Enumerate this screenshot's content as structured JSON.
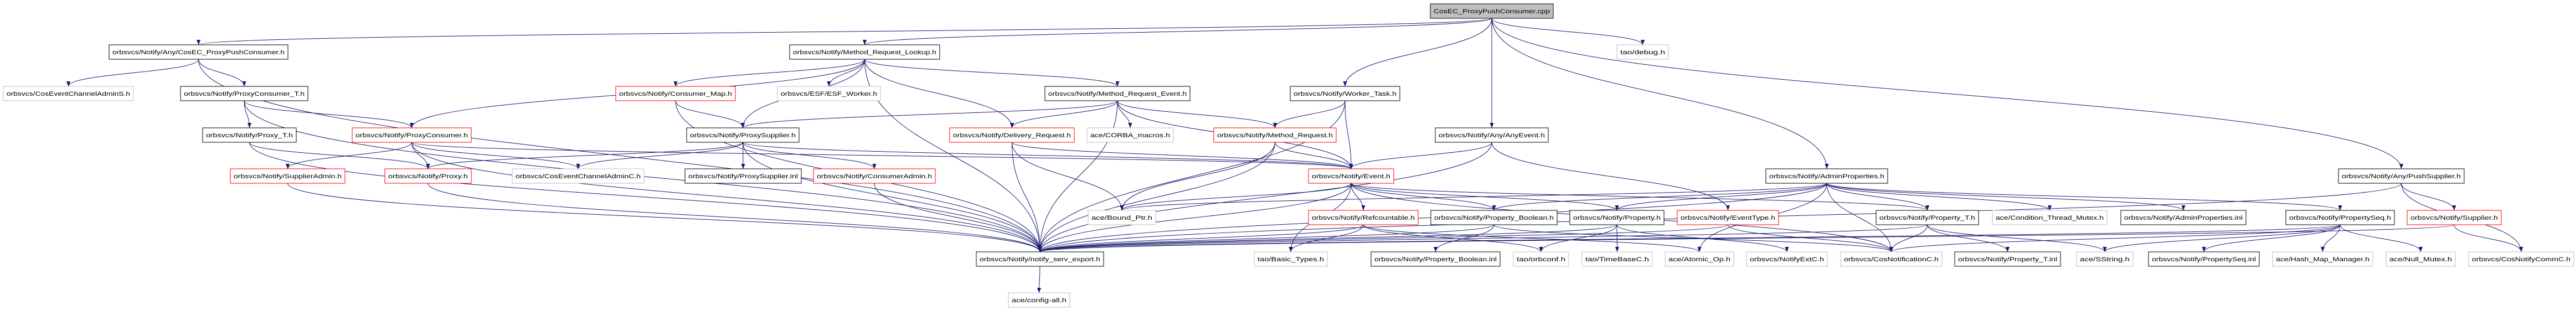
{
  "colors": {
    "edge": "#191970",
    "border_documented": "#000000",
    "border_truncated": "#ff0000",
    "border_undocumented": "#bfbfbf",
    "root_fill": "#bfbfbf"
  },
  "nodes": [
    {
      "label": "CosEC_ProxyPushConsumer.cpp",
      "kind": "root"
    },
    {
      "label": "orbsvcs/Notify/Any/CosEC_ProxyPushConsumer.h",
      "kind": "documented"
    },
    {
      "label": "orbsvcs/Notify/Method_Request_Lookup.h",
      "kind": "documented"
    },
    {
      "label": "tao/debug.h",
      "kind": "undocumented"
    },
    {
      "label": "orbsvcs/CosEventChannelAdminS.h",
      "kind": "undocumented"
    },
    {
      "label": "orbsvcs/Notify/ProxyConsumer_T.h",
      "kind": "documented"
    },
    {
      "label": "orbsvcs/Notify/Consumer_Map.h",
      "kind": "truncated"
    },
    {
      "label": "orbsvcs/ESF/ESF_Worker.h",
      "kind": "undocumented"
    },
    {
      "label": "orbsvcs/Notify/Method_Request_Event.h",
      "kind": "documented"
    },
    {
      "label": "orbsvcs/Notify/Worker_Task.h",
      "kind": "documented"
    },
    {
      "label": "orbsvcs/Notify/Proxy_T.h",
      "kind": "documented"
    },
    {
      "label": "orbsvcs/Notify/ProxyConsumer.h",
      "kind": "truncated"
    },
    {
      "label": "orbsvcs/Notify/ProxySupplier.h",
      "kind": "documented"
    },
    {
      "label": "orbsvcs/Notify/Delivery_Request.h",
      "kind": "truncated"
    },
    {
      "label": "ace/CORBA_macros.h",
      "kind": "undocumented"
    },
    {
      "label": "orbsvcs/Notify/Method_Request.h",
      "kind": "truncated"
    },
    {
      "label": "orbsvcs/Notify/Any/AnyEvent.h",
      "kind": "documented"
    },
    {
      "label": "orbsvcs/Notify/SupplierAdmin.h",
      "kind": "truncated"
    },
    {
      "label": "orbsvcs/Notify/Proxy.h",
      "kind": "truncated"
    },
    {
      "label": "orbsvcs/CosEventChannelAdminC.h",
      "kind": "undocumented"
    },
    {
      "label": "orbsvcs/Notify/ProxySupplier.inl",
      "kind": "documented"
    },
    {
      "label": "orbsvcs/Notify/ConsumerAdmin.h",
      "kind": "truncated"
    },
    {
      "label": "orbsvcs/Notify/Event.h",
      "kind": "truncated"
    },
    {
      "label": "orbsvcs/Notify/AdminProperties.h",
      "kind": "documented"
    },
    {
      "label": "orbsvcs/Notify/Any/PushSupplier.h",
      "kind": "documented"
    },
    {
      "label": "ace/Bound_Ptr.h",
      "kind": "undocumented"
    },
    {
      "label": "orbsvcs/Notify/Refcountable.h",
      "kind": "truncated"
    },
    {
      "label": "orbsvcs/Notify/Property_Boolean.h",
      "kind": "documented"
    },
    {
      "label": "orbsvcs/Notify/Property.h",
      "kind": "documented"
    },
    {
      "label": "orbsvcs/Notify/EventType.h",
      "kind": "truncated"
    },
    {
      "label": "orbsvcs/Notify/Property_T.h",
      "kind": "documented"
    },
    {
      "label": "ace/Condition_Thread_Mutex.h",
      "kind": "undocumented"
    },
    {
      "label": "orbsvcs/Notify/AdminProperties.inl",
      "kind": "documented"
    },
    {
      "label": "orbsvcs/Notify/PropertySeq.h",
      "kind": "documented"
    },
    {
      "label": "orbsvcs/Notify/Supplier.h",
      "kind": "truncated"
    },
    {
      "label": "orbsvcs/Notify/notify_serv_export.h",
      "kind": "documented"
    },
    {
      "label": "tao/Basic_Types.h",
      "kind": "undocumented"
    },
    {
      "label": "orbsvcs/Notify/Property_Boolean.inl",
      "kind": "documented"
    },
    {
      "label": "tao/orbconf.h",
      "kind": "undocumented"
    },
    {
      "label": "tao/TimeBaseC.h",
      "kind": "undocumented"
    },
    {
      "label": "ace/Atomic_Op.h",
      "kind": "undocumented"
    },
    {
      "label": "orbsvcs/NotifyExtC.h",
      "kind": "undocumented"
    },
    {
      "label": "orbsvcs/CosNotificationC.h",
      "kind": "undocumented"
    },
    {
      "label": "orbsvcs/Notify/Property_T.inl",
      "kind": "documented"
    },
    {
      "label": "ace/SString.h",
      "kind": "undocumented"
    },
    {
      "label": "orbsvcs/Notify/PropertySeq.inl",
      "kind": "documented"
    },
    {
      "label": "ace/Hash_Map_Manager.h",
      "kind": "undocumented"
    },
    {
      "label": "ace/Null_Mutex.h",
      "kind": "undocumented"
    },
    {
      "label": "orbsvcs/CosNotifyCommC.h",
      "kind": "undocumented"
    },
    {
      "label": "ace/config-all.h",
      "kind": "undocumented"
    }
  ],
  "edges": [
    [
      "CosEC_ProxyPushConsumer.cpp",
      "orbsvcs/Notify/Any/CosEC_ProxyPushConsumer.h"
    ],
    [
      "CosEC_ProxyPushConsumer.cpp",
      "orbsvcs/Notify/Method_Request_Lookup.h"
    ],
    [
      "CosEC_ProxyPushConsumer.cpp",
      "orbsvcs/Notify/Worker_Task.h"
    ],
    [
      "CosEC_ProxyPushConsumer.cpp",
      "orbsvcs/Notify/Any/AnyEvent.h"
    ],
    [
      "CosEC_ProxyPushConsumer.cpp",
      "tao/debug.h"
    ],
    [
      "CosEC_ProxyPushConsumer.cpp",
      "orbsvcs/Notify/AdminProperties.h"
    ],
    [
      "CosEC_ProxyPushConsumer.cpp",
      "orbsvcs/Notify/Any/PushSupplier.h"
    ],
    [
      "orbsvcs/Notify/Any/CosEC_ProxyPushConsumer.h",
      "orbsvcs/CosEventChannelAdminS.h"
    ],
    [
      "orbsvcs/Notify/Any/CosEC_ProxyPushConsumer.h",
      "orbsvcs/Notify/ProxyConsumer_T.h"
    ],
    [
      "orbsvcs/Notify/Any/CosEC_ProxyPushConsumer.h",
      "orbsvcs/Notify/notify_serv_export.h"
    ],
    [
      "orbsvcs/Notify/ProxyConsumer_T.h",
      "orbsvcs/Notify/Proxy_T.h"
    ],
    [
      "orbsvcs/Notify/ProxyConsumer_T.h",
      "orbsvcs/Notify/ProxyConsumer.h"
    ],
    [
      "orbsvcs/Notify/ProxyConsumer_T.h",
      "orbsvcs/Notify/notify_serv_export.h"
    ],
    [
      "orbsvcs/Notify/Proxy_T.h",
      "orbsvcs/Notify/Proxy.h"
    ],
    [
      "orbsvcs/Notify/Proxy_T.h",
      "orbsvcs/Notify/notify_serv_export.h"
    ],
    [
      "orbsvcs/Notify/ProxyConsumer.h",
      "orbsvcs/Notify/SupplierAdmin.h"
    ],
    [
      "orbsvcs/Notify/ProxyConsumer.h",
      "orbsvcs/Notify/Proxy.h"
    ],
    [
      "orbsvcs/Notify/ProxyConsumer.h",
      "orbsvcs/CosEventChannelAdminC.h"
    ],
    [
      "orbsvcs/Notify/ProxyConsumer.h",
      "orbsvcs/Notify/Event.h"
    ],
    [
      "orbsvcs/Notify/ProxyConsumer.h",
      "orbsvcs/Notify/notify_serv_export.h"
    ],
    [
      "orbsvcs/Notify/SupplierAdmin.h",
      "orbsvcs/Notify/notify_serv_export.h"
    ],
    [
      "orbsvcs/Notify/Proxy.h",
      "orbsvcs/Notify/notify_serv_export.h"
    ],
    [
      "orbsvcs/Notify/Method_Request_Lookup.h",
      "orbsvcs/Notify/ProxyConsumer.h"
    ],
    [
      "orbsvcs/Notify/Method_Request_Lookup.h",
      "orbsvcs/Notify/Consumer_Map.h"
    ],
    [
      "orbsvcs/Notify/Method_Request_Lookup.h",
      "orbsvcs/ESF/ESF_Worker.h"
    ],
    [
      "orbsvcs/Notify/Method_Request_Lookup.h",
      "orbsvcs/Notify/ProxySupplier.h"
    ],
    [
      "orbsvcs/Notify/Method_Request_Lookup.h",
      "orbsvcs/Notify/Method_Request_Event.h"
    ],
    [
      "orbsvcs/Notify/Method_Request_Lookup.h",
      "orbsvcs/Notify/Delivery_Request.h"
    ],
    [
      "orbsvcs/Notify/Method_Request_Lookup.h",
      "orbsvcs/Notify/notify_serv_export.h"
    ],
    [
      "orbsvcs/Notify/Consumer_Map.h",
      "orbsvcs/Notify/ProxySupplier.h"
    ],
    [
      "orbsvcs/Notify/Consumer_Map.h",
      "orbsvcs/Notify/notify_serv_export.h"
    ],
    [
      "orbsvcs/Notify/Method_Request_Event.h",
      "orbsvcs/Notify/ProxySupplier.h"
    ],
    [
      "orbsvcs/Notify/Method_Request_Event.h",
      "orbsvcs/Notify/Delivery_Request.h"
    ],
    [
      "orbsvcs/Notify/Method_Request_Event.h",
      "ace/CORBA_macros.h"
    ],
    [
      "orbsvcs/Notify/Method_Request_Event.h",
      "orbsvcs/Notify/Method_Request.h"
    ],
    [
      "orbsvcs/Notify/Method_Request_Event.h",
      "orbsvcs/Notify/Event.h"
    ],
    [
      "orbsvcs/Notify/Method_Request_Event.h",
      "orbsvcs/Notify/notify_serv_export.h"
    ],
    [
      "orbsvcs/Notify/ProxySupplier.h",
      "orbsvcs/Notify/Proxy.h"
    ],
    [
      "orbsvcs/Notify/ProxySupplier.h",
      "orbsvcs/CosEventChannelAdminC.h"
    ],
    [
      "orbsvcs/Notify/ProxySupplier.h",
      "orbsvcs/Notify/ProxySupplier.inl"
    ],
    [
      "orbsvcs/Notify/ProxySupplier.h",
      "orbsvcs/Notify/ConsumerAdmin.h"
    ],
    [
      "orbsvcs/Notify/ProxySupplier.h",
      "orbsvcs/Notify/Event.h"
    ],
    [
      "orbsvcs/Notify/ProxySupplier.h",
      "orbsvcs/Notify/notify_serv_export.h"
    ],
    [
      "orbsvcs/Notify/ConsumerAdmin.h",
      "orbsvcs/Notify/notify_serv_export.h"
    ],
    [
      "orbsvcs/Notify/Delivery_Request.h",
      "ace/Bound_Ptr.h"
    ],
    [
      "orbsvcs/Notify/Delivery_Request.h",
      "orbsvcs/Notify/Event.h"
    ],
    [
      "orbsvcs/Notify/Delivery_Request.h",
      "orbsvcs/Notify/notify_serv_export.h"
    ],
    [
      "orbsvcs/Notify/Method_Request.h",
      "orbsvcs/Notify/Event.h"
    ],
    [
      "orbsvcs/Notify/Method_Request.h",
      "ace/Bound_Ptr.h"
    ],
    [
      "orbsvcs/Notify/Method_Request.h",
      "orbsvcs/Notify/notify_serv_export.h"
    ],
    [
      "orbsvcs/Notify/Worker_Task.h",
      "orbsvcs/Notify/Method_Request.h"
    ],
    [
      "orbsvcs/Notify/Worker_Task.h",
      "orbsvcs/Notify/Event.h"
    ],
    [
      "orbsvcs/Notify/Worker_Task.h",
      "orbsvcs/Notify/notify_serv_export.h"
    ],
    [
      "orbsvcs/Notify/Any/AnyEvent.h",
      "orbsvcs/Notify/Event.h"
    ],
    [
      "orbsvcs/Notify/Any/AnyEvent.h",
      "orbsvcs/Notify/EventType.h"
    ],
    [
      "orbsvcs/Notify/Any/AnyEvent.h",
      "orbsvcs/Notify/notify_serv_export.h"
    ],
    [
      "orbsvcs/Notify/Event.h",
      "orbsvcs/Notify/Refcountable.h"
    ],
    [
      "orbsvcs/Notify/Event.h",
      "orbsvcs/Notify/Property_Boolean.h"
    ],
    [
      "orbsvcs/Notify/Event.h",
      "orbsvcs/Notify/Property.h"
    ],
    [
      "orbsvcs/Notify/Event.h",
      "orbsvcs/Notify/Property_T.h"
    ],
    [
      "orbsvcs/Notify/Event.h",
      "ace/Bound_Ptr.h"
    ],
    [
      "orbsvcs/Notify/Event.h",
      "tao/Basic_Types.h"
    ],
    [
      "orbsvcs/Notify/Event.h",
      "orbsvcs/CosNotificationC.h"
    ],
    [
      "orbsvcs/Notify/Event.h",
      "orbsvcs/Notify/notify_serv_export.h"
    ],
    [
      "orbsvcs/Notify/Refcountable.h",
      "tao/Basic_Types.h"
    ],
    [
      "orbsvcs/Notify/Refcountable.h",
      "tao/orbconf.h"
    ],
    [
      "orbsvcs/Notify/Refcountable.h",
      "ace/Atomic_Op.h"
    ],
    [
      "orbsvcs/Notify/Refcountable.h",
      "orbsvcs/Notify/notify_serv_export.h"
    ],
    [
      "orbsvcs/Notify/Property_Boolean.h",
      "orbsvcs/Notify/Property_Boolean.inl"
    ],
    [
      "orbsvcs/Notify/Property_Boolean.h",
      "orbsvcs/CosNotificationC.h"
    ],
    [
      "orbsvcs/Notify/Property_Boolean.h",
      "orbsvcs/Notify/notify_serv_export.h"
    ],
    [
      "orbsvcs/Notify/Property.h",
      "tao/orbconf.h"
    ],
    [
      "orbsvcs/Notify/Property.h",
      "tao/TimeBaseC.h"
    ],
    [
      "orbsvcs/Notify/Property.h",
      "orbsvcs/NotifyExtC.h"
    ],
    [
      "orbsvcs/Notify/Property.h",
      "orbsvcs/Notify/notify_serv_export.h"
    ],
    [
      "orbsvcs/Notify/EventType.h",
      "orbsvcs/CosNotificationC.h"
    ],
    [
      "orbsvcs/Notify/EventType.h",
      "orbsvcs/Notify/notify_serv_export.h"
    ],
    [
      "orbsvcs/Notify/AdminProperties.h",
      "orbsvcs/Notify/Property.h"
    ],
    [
      "orbsvcs/Notify/AdminProperties.h",
      "orbsvcs/Notify/Property_Boolean.h"
    ],
    [
      "orbsvcs/Notify/AdminProperties.h",
      "orbsvcs/Notify/Property_T.h"
    ],
    [
      "orbsvcs/Notify/AdminProperties.h",
      "ace/Condition_Thread_Mutex.h"
    ],
    [
      "orbsvcs/Notify/AdminProperties.h",
      "orbsvcs/Notify/AdminProperties.inl"
    ],
    [
      "orbsvcs/Notify/AdminProperties.h",
      "orbsvcs/Notify/PropertySeq.h"
    ],
    [
      "orbsvcs/Notify/AdminProperties.h",
      "ace/Atomic_Op.h"
    ],
    [
      "orbsvcs/Notify/AdminProperties.h",
      "orbsvcs/CosNotificationC.h"
    ],
    [
      "orbsvcs/Notify/AdminProperties.h",
      "ace/Bound_Ptr.h"
    ],
    [
      "orbsvcs/Notify/AdminProperties.h",
      "orbsvcs/Notify/notify_serv_export.h"
    ],
    [
      "orbsvcs/Notify/Property_T.h",
      "orbsvcs/CosNotificationC.h"
    ],
    [
      "orbsvcs/Notify/Property_T.h",
      "orbsvcs/Notify/Property_T.inl"
    ],
    [
      "orbsvcs/Notify/Property_T.h",
      "ace/SString.h"
    ],
    [
      "orbsvcs/Notify/Property_T.h",
      "orbsvcs/Notify/notify_serv_export.h"
    ],
    [
      "orbsvcs/Notify/PropertySeq.h",
      "orbsvcs/CosNotificationC.h"
    ],
    [
      "orbsvcs/Notify/PropertySeq.h",
      "orbsvcs/Notify/PropertySeq.inl"
    ],
    [
      "orbsvcs/Notify/PropertySeq.h",
      "ace/Hash_Map_Manager.h"
    ],
    [
      "orbsvcs/Notify/PropertySeq.h",
      "ace/Null_Mutex.h"
    ],
    [
      "orbsvcs/Notify/PropertySeq.h",
      "ace/SString.h"
    ],
    [
      "orbsvcs/Notify/PropertySeq.h",
      "orbsvcs/Notify/notify_serv_export.h"
    ],
    [
      "orbsvcs/Notify/Any/PushSupplier.h",
      "orbsvcs/Notify/Supplier.h"
    ],
    [
      "orbsvcs/Notify/Any/PushSupplier.h",
      "orbsvcs/CosNotifyCommC.h"
    ],
    [
      "orbsvcs/Notify/Any/PushSupplier.h",
      "orbsvcs/Notify/notify_serv_export.h"
    ],
    [
      "orbsvcs/Notify/Supplier.h",
      "orbsvcs/CosNotifyCommC.h"
    ],
    [
      "orbsvcs/Notify/Supplier.h",
      "orbsvcs/Notify/notify_serv_export.h"
    ],
    [
      "orbsvcs/Notify/notify_serv_export.h",
      "ace/config-all.h"
    ]
  ]
}
